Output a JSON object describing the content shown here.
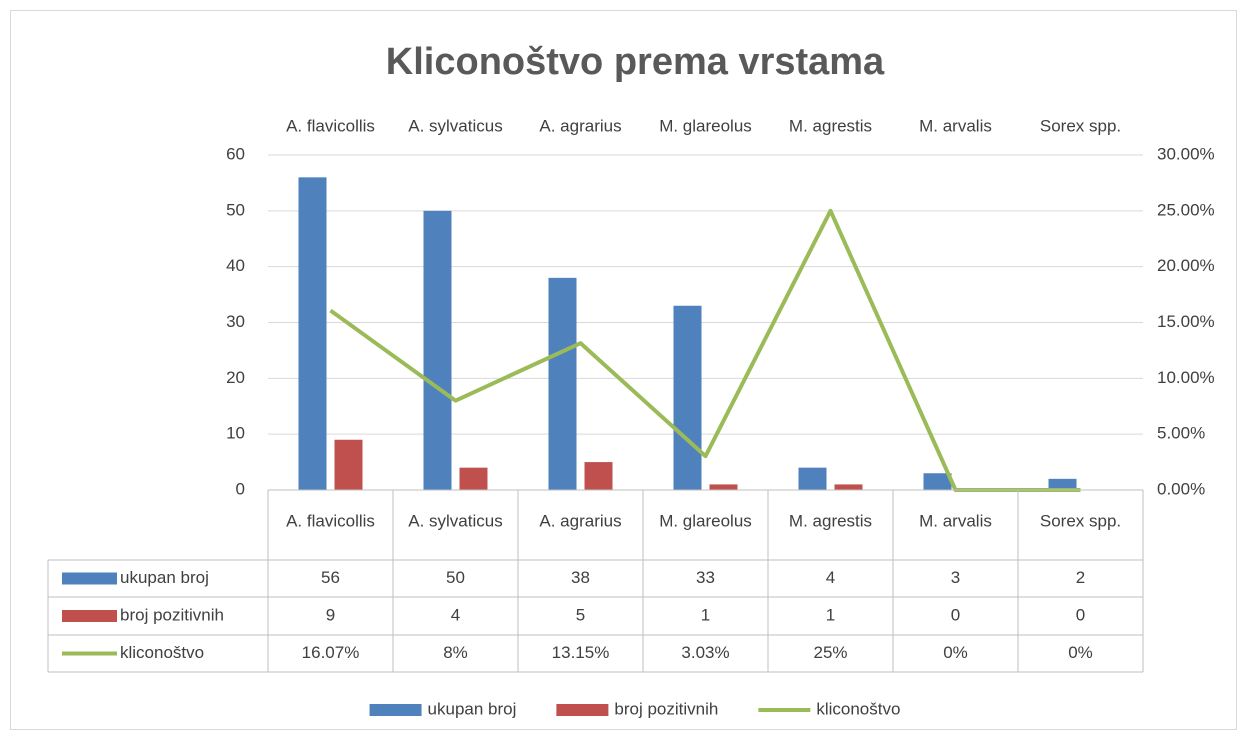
{
  "chart_data": {
    "type": "bar",
    "title": "Kliconoštvo prema vrstama",
    "categories": [
      "A. flavicollis",
      "A. sylvaticus",
      "A. agrarius",
      "M. glareolus",
      "M. agrestis",
      "M. arvalis",
      "Sorex spp."
    ],
    "series": [
      {
        "name": "ukupan broj",
        "type": "bar",
        "color": "#4f81bd",
        "values": [
          56,
          50,
          38,
          33,
          4,
          3,
          2
        ]
      },
      {
        "name": "broj pozitivnih",
        "type": "bar",
        "color": "#c0504d",
        "values": [
          9,
          4,
          5,
          1,
          1,
          0,
          0
        ]
      },
      {
        "name": "kliconoštvo",
        "type": "line",
        "axis": "y2",
        "color": "#9bbb59",
        "values": [
          16.07,
          8,
          13.15,
          3.03,
          25,
          0,
          0
        ],
        "value_labels": [
          "16.07%",
          "8%",
          "13.15%",
          "3.03%",
          "25%",
          "0%",
          "0%"
        ]
      }
    ],
    "ylim": [
      0,
      60
    ],
    "yticks": [
      0,
      10,
      20,
      30,
      40,
      50,
      60
    ],
    "y2lim": [
      0,
      30
    ],
    "y2ticks": [
      {
        "value": 0,
        "label": "0.00%"
      },
      {
        "value": 5,
        "label": "5.00%"
      },
      {
        "value": 10,
        "label": "10.00%"
      },
      {
        "value": 15,
        "label": "15.00%"
      },
      {
        "value": 20,
        "label": "20.00%"
      },
      {
        "value": 25,
        "label": "25.00%"
      },
      {
        "value": 30,
        "label": "30.00%"
      }
    ],
    "grid": true,
    "data_table": true,
    "legend": "bottom"
  }
}
